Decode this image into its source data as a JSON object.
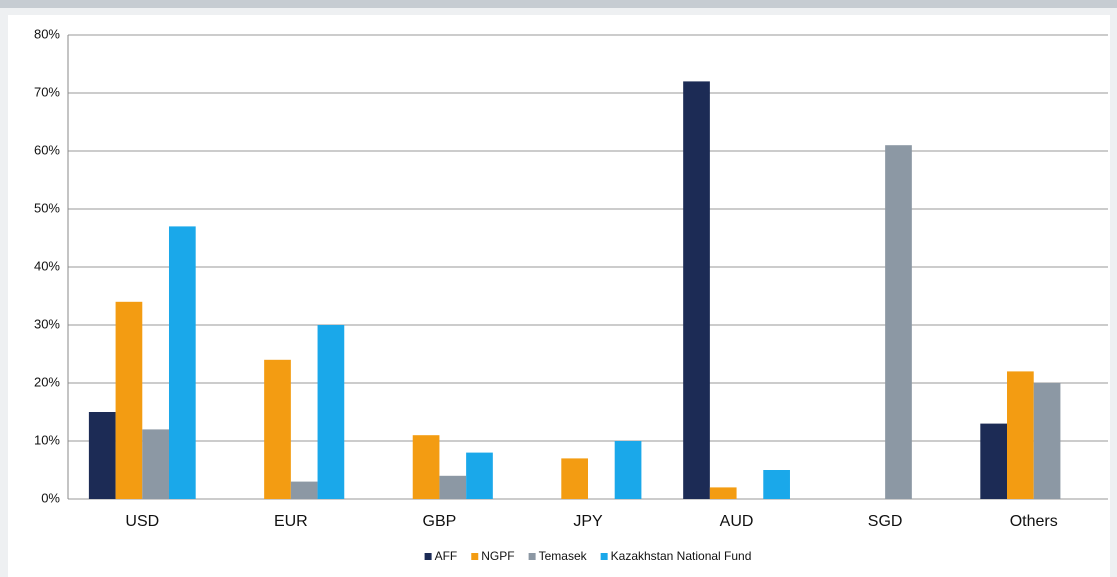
{
  "chart_data": {
    "type": "bar",
    "categories": [
      "USD",
      "EUR",
      "GBP",
      "JPY",
      "AUD",
      "SGD",
      "Others"
    ],
    "series": [
      {
        "name": "AFF",
        "color": "#1c2b55",
        "values": [
          15,
          0,
          0,
          0,
          72,
          0,
          13
        ]
      },
      {
        "name": "NGPF",
        "color": "#f39c12",
        "values": [
          34,
          24,
          11,
          7,
          2,
          0,
          22
        ]
      },
      {
        "name": "Temasek",
        "color": "#8c98a4",
        "values": [
          12,
          3,
          4,
          0,
          0,
          61,
          20
        ]
      },
      {
        "name": "Kazakhstan National Fund",
        "color": "#1aa8ea",
        "values": [
          47,
          30,
          8,
          10,
          5,
          0,
          0
        ]
      }
    ],
    "ylim": [
      0,
      80
    ],
    "yticks": [
      {
        "value": 0,
        "label": "0%"
      },
      {
        "value": 10,
        "label": "10%"
      },
      {
        "value": 20,
        "label": "20%"
      },
      {
        "value": 30,
        "label": "30%"
      },
      {
        "value": 40,
        "label": "40%"
      },
      {
        "value": 50,
        "label": "50%"
      },
      {
        "value": 60,
        "label": "60%"
      },
      {
        "value": 70,
        "label": "70%"
      },
      {
        "value": 80,
        "label": "80%"
      }
    ],
    "grid": true,
    "legend": "bottom"
  }
}
